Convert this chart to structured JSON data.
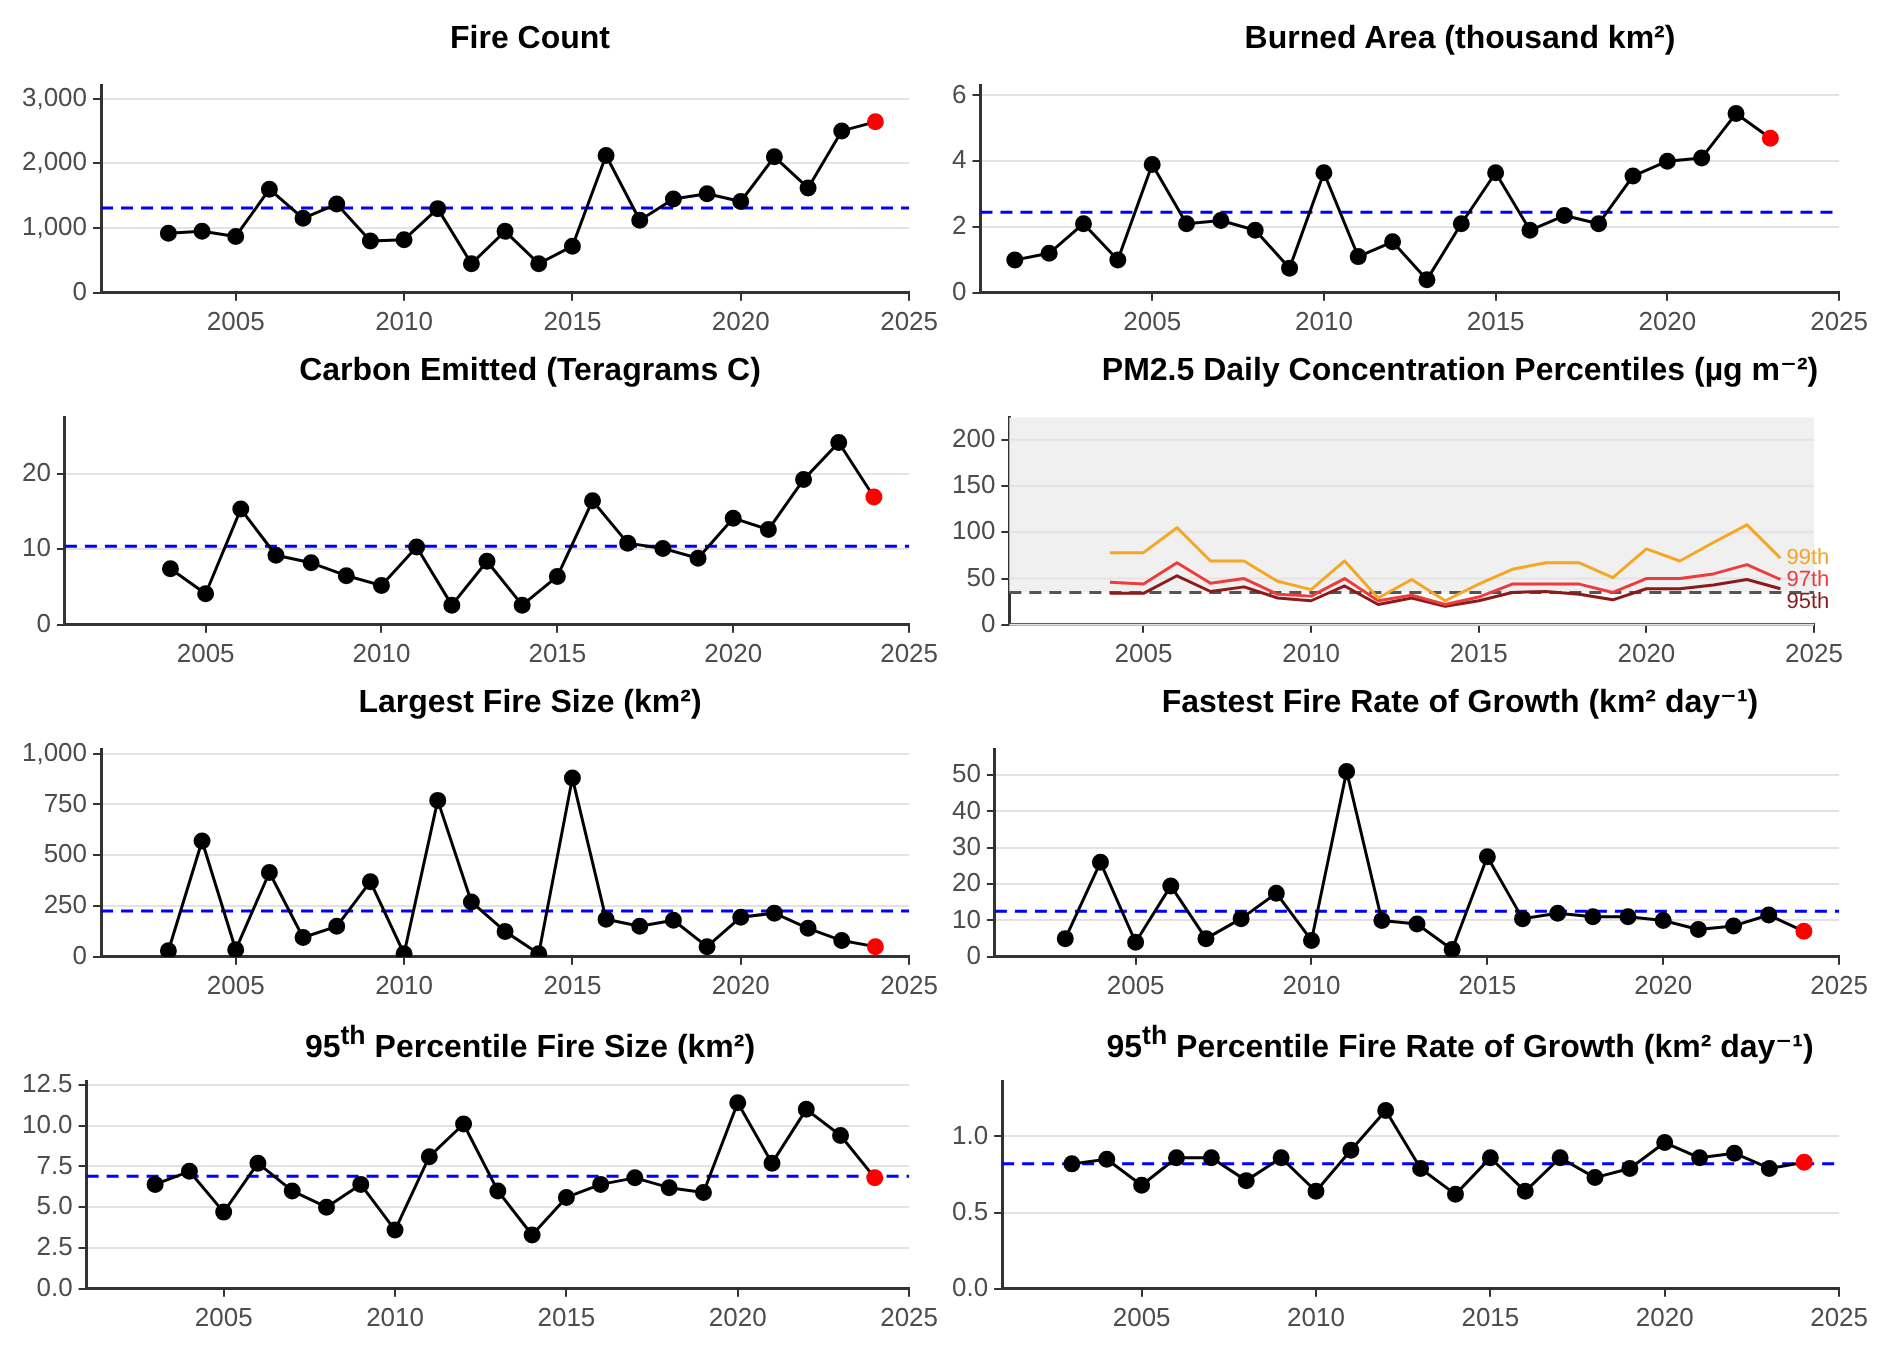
{
  "chart_data": [
    {
      "type": "line",
      "title": "Fire Count",
      "x": [
        2003,
        2004,
        2005,
        2006,
        2007,
        2008,
        2009,
        2010,
        2011,
        2012,
        2013,
        2014,
        2015,
        2016,
        2017,
        2018,
        2019,
        2020,
        2021,
        2022,
        2023,
        2024
      ],
      "xlim": [
        2001,
        2025
      ],
      "xticks": [
        2005,
        2010,
        2015,
        2020,
        2025
      ],
      "ylim": [
        0,
        3200
      ],
      "yticks": [
        0,
        {
          "value": 1000,
          "label": "1,000"
        },
        {
          "value": 2000,
          "label": "2,000"
        },
        {
          "value": 3000,
          "label": "3,000"
        }
      ],
      "grid": "y",
      "marker": "circle",
      "series": [
        {
          "color": "#000000",
          "colors": [
            "#000000",
            "#000000",
            "#000000",
            "#000000",
            "#000000",
            "#000000",
            "#000000",
            "#000000",
            "#000000",
            "#000000",
            "#000000",
            "#000000",
            "#000000",
            "#000000",
            "#000000",
            "#000000",
            "#000000",
            "#000000",
            "#000000",
            "#000000",
            "#000000",
            "#ff0000"
          ],
          "values": [
            920,
            950,
            870,
            1600,
            1150,
            1370,
            800,
            820,
            1300,
            450,
            950,
            450,
            720,
            2120,
            1120,
            1450,
            1530,
            1410,
            2100,
            1620,
            2500,
            2640
          ]
        }
      ],
      "ref_lines": [
        {
          "axis": "y",
          "value": 1310,
          "color": "#0000ff",
          "line_style": "dashed"
        }
      ]
    },
    {
      "type": "line",
      "title": "Burned Area (thousand km²)",
      "x": [
        2001,
        2002,
        2003,
        2004,
        2005,
        2006,
        2007,
        2008,
        2009,
        2010,
        2011,
        2012,
        2013,
        2014,
        2015,
        2016,
        2017,
        2018,
        2019,
        2020,
        2021,
        2022,
        2023
      ],
      "xlim": [
        2000,
        2025
      ],
      "xticks": [
        2005,
        2010,
        2015,
        2020,
        2025
      ],
      "ylim": [
        0,
        6.3
      ],
      "yticks": [
        0,
        2,
        4,
        6
      ],
      "grid": "y",
      "marker": "circle",
      "series": [
        {
          "color": "#000000",
          "colors": [
            "#000000",
            "#000000",
            "#000000",
            "#000000",
            "#000000",
            "#000000",
            "#000000",
            "#000000",
            "#000000",
            "#000000",
            "#000000",
            "#000000",
            "#000000",
            "#000000",
            "#000000",
            "#000000",
            "#000000",
            "#000000",
            "#000000",
            "#000000",
            "#000000",
            "#000000",
            "#ff0000"
          ],
          "values": [
            1.0,
            1.2,
            2.1,
            1.0,
            3.9,
            2.1,
            2.2,
            1.9,
            0.75,
            3.65,
            1.1,
            1.55,
            0.4,
            2.1,
            3.65,
            1.9,
            2.35,
            2.1,
            3.55,
            4.0,
            4.1,
            5.45,
            4.7
          ]
        }
      ],
      "ref_lines": [
        {
          "axis": "y",
          "value": 2.45,
          "color": "#0000ff",
          "line_style": "dashed"
        }
      ]
    },
    {
      "type": "line",
      "title": "Carbon Emitted (Teragrams C)",
      "x": [
        2004,
        2005,
        2006,
        2007,
        2008,
        2009,
        2010,
        2011,
        2012,
        2013,
        2014,
        2015,
        2016,
        2017,
        2018,
        2019,
        2020,
        2021,
        2022,
        2023,
        2024
      ],
      "xlim": [
        2001,
        2025
      ],
      "xticks": [
        2005,
        2010,
        2015,
        2020,
        2025
      ],
      "ylim": [
        0,
        27.4
      ],
      "yticks": [
        0,
        10,
        20
      ],
      "grid": "y",
      "marker": "circle",
      "series": [
        {
          "color": "#000000",
          "colors": [
            "#000000",
            "#000000",
            "#000000",
            "#000000",
            "#000000",
            "#000000",
            "#000000",
            "#000000",
            "#000000",
            "#000000",
            "#000000",
            "#000000",
            "#000000",
            "#000000",
            "#000000",
            "#000000",
            "#000000",
            "#000000",
            "#000000",
            "#000000",
            "#ff0000"
          ],
          "values": [
            7.4,
            4.1,
            15.3,
            9.2,
            8.2,
            6.5,
            5.2,
            10.3,
            2.6,
            8.4,
            2.6,
            6.4,
            16.4,
            10.8,
            10.1,
            8.8,
            14.1,
            12.6,
            19.2,
            24.1,
            16.9
          ]
        }
      ],
      "ref_lines": [
        {
          "axis": "y",
          "value": 10.4,
          "color": "#0000ff",
          "line_style": "dashed"
        }
      ]
    },
    {
      "type": "line",
      "title": "PM2.5 Daily Concentration Percentiles (µg m⁻²)",
      "x": [
        2004,
        2005,
        2006,
        2007,
        2008,
        2009,
        2010,
        2011,
        2012,
        2013,
        2014,
        2015,
        2016,
        2017,
        2018,
        2019,
        2020,
        2021,
        2022,
        2023,
        2024
      ],
      "xlim": [
        2001,
        2025
      ],
      "xticks": [
        2005,
        2010,
        2015,
        2020,
        2025
      ],
      "ylim": [
        0,
        224
      ],
      "yticks": [
        0,
        50,
        100,
        150,
        200
      ],
      "grid": "y",
      "marker": "none",
      "series": [
        {
          "name": "99th",
          "color": "#f5a623",
          "values": [
            78,
            78,
            105,
            69,
            69,
            47,
            38,
            69,
            29,
            49,
            26,
            44,
            60,
            67,
            67,
            51,
            82,
            69,
            89,
            108,
            72
          ]
        },
        {
          "name": "97th",
          "color": "#ee3b3b",
          "values": [
            46,
            44,
            67,
            45,
            50,
            33,
            31,
            50,
            26,
            32,
            22,
            30,
            44,
            44,
            44,
            35,
            50,
            50,
            55,
            65,
            49
          ]
        },
        {
          "name": "95th",
          "color": "#8b1a1a",
          "values": [
            34,
            34,
            53,
            36,
            41,
            29,
            26,
            42,
            22,
            29,
            20,
            26,
            35,
            36,
            33,
            27,
            39,
            39,
            43,
            49,
            39
          ]
        }
      ],
      "bands": [
        {
          "axis": "y",
          "from": 35,
          "to": 224,
          "color": "#f0f0f0"
        }
      ],
      "ref_lines": [
        {
          "axis": "y",
          "value": 35,
          "color": "#555555",
          "line_style": "dashed"
        }
      ]
    },
    {
      "type": "line",
      "title": "Largest Fire Size (km²)",
      "x": [
        2003,
        2004,
        2005,
        2006,
        2007,
        2008,
        2009,
        2010,
        2011,
        2012,
        2013,
        2014,
        2015,
        2016,
        2017,
        2018,
        2019,
        2020,
        2021,
        2022,
        2023,
        2024
      ],
      "xlim": [
        2001,
        2025
      ],
      "xticks": [
        2005,
        2010,
        2015,
        2020,
        2025
      ],
      "ylim": [
        0,
        1020
      ],
      "yticks": [
        0,
        250,
        500,
        750,
        {
          "value": 1000,
          "label": "1,000"
        }
      ],
      "grid": "y",
      "marker": "circle",
      "series": [
        {
          "color": "#000000",
          "colors": [
            "#000000",
            "#000000",
            "#000000",
            "#000000",
            "#000000",
            "#000000",
            "#000000",
            "#000000",
            "#000000",
            "#000000",
            "#000000",
            "#000000",
            "#000000",
            "#000000",
            "#000000",
            "#000000",
            "#000000",
            "#000000",
            "#000000",
            "#000000",
            "#000000",
            "#ff0000"
          ],
          "values": [
            30,
            570,
            35,
            415,
            95,
            150,
            370,
            15,
            770,
            270,
            125,
            15,
            880,
            185,
            150,
            180,
            50,
            195,
            215,
            140,
            80,
            50
          ]
        }
      ],
      "ref_lines": [
        {
          "axis": "y",
          "value": 225,
          "color": "#0000ff",
          "line_style": "dashed"
        }
      ]
    },
    {
      "type": "line",
      "title": "Fastest Fire Rate of Growth (km² day⁻¹)",
      "x": [
        2003,
        2004,
        2005,
        2006,
        2007,
        2008,
        2009,
        2010,
        2011,
        2012,
        2013,
        2014,
        2015,
        2016,
        2017,
        2018,
        2019,
        2020,
        2021,
        2022,
        2023,
        2024
      ],
      "xlim": [
        2001,
        2025
      ],
      "xticks": [
        2005,
        2010,
        2015,
        2020,
        2025
      ],
      "ylim": [
        0,
        57
      ],
      "yticks": [
        0,
        10,
        20,
        30,
        40,
        50
      ],
      "grid": "y",
      "marker": "circle",
      "series": [
        {
          "color": "#000000",
          "colors": [
            "#000000",
            "#000000",
            "#000000",
            "#000000",
            "#000000",
            "#000000",
            "#000000",
            "#000000",
            "#000000",
            "#000000",
            "#000000",
            "#000000",
            "#000000",
            "#000000",
            "#000000",
            "#000000",
            "#000000",
            "#000000",
            "#000000",
            "#000000",
            "#000000",
            "#ff0000"
          ],
          "values": [
            5,
            26,
            4,
            19.5,
            5,
            10.5,
            17.5,
            4.5,
            51,
            10,
            9,
            2,
            27.5,
            10.5,
            12,
            11,
            11,
            10,
            7.5,
            8.5,
            11.5,
            7
          ]
        }
      ],
      "ref_lines": [
        {
          "axis": "y",
          "value": 12.5,
          "color": "#0000ff",
          "line_style": "dashed"
        }
      ]
    },
    {
      "type": "line",
      "title": "95$^{th}$ Percentile Fire Size (km²)",
      "x": [
        2003,
        2004,
        2005,
        2006,
        2007,
        2008,
        2009,
        2010,
        2011,
        2012,
        2013,
        2014,
        2015,
        2016,
        2017,
        2018,
        2019,
        2020,
        2021,
        2022,
        2023,
        2024
      ],
      "xlim": [
        2001,
        2025
      ],
      "xticks": [
        2005,
        2010,
        2015,
        2020,
        2025
      ],
      "ylim": [
        0,
        12.7
      ],
      "yticks": [
        {
          "value": 0,
          "label": "0.0"
        },
        2.5,
        {
          "value": 5,
          "label": "5.0"
        },
        7.5,
        {
          "value": 10,
          "label": "10.0"
        },
        12.5
      ],
      "grid": "y",
      "marker": "circle",
      "series": [
        {
          "color": "#000000",
          "colors": [
            "#000000",
            "#000000",
            "#000000",
            "#000000",
            "#000000",
            "#000000",
            "#000000",
            "#000000",
            "#000000",
            "#000000",
            "#000000",
            "#000000",
            "#000000",
            "#000000",
            "#000000",
            "#000000",
            "#000000",
            "#000000",
            "#000000",
            "#000000",
            "#000000",
            "#ff0000"
          ],
          "values": [
            6.4,
            7.2,
            4.7,
            7.7,
            6.0,
            5.0,
            6.4,
            3.6,
            8.1,
            10.1,
            6.0,
            3.3,
            5.6,
            6.4,
            6.8,
            6.2,
            5.9,
            11.4,
            7.7,
            11.0,
            9.4,
            6.8
          ]
        }
      ],
      "ref_lines": [
        {
          "axis": "y",
          "value": 6.9,
          "color": "#0000ff",
          "line_style": "dashed"
        }
      ]
    },
    {
      "type": "line",
      "title": "95$^{th}$ Percentile Fire Rate of Growth (km² day⁻¹)",
      "x": [
        2003,
        2004,
        2005,
        2006,
        2007,
        2008,
        2009,
        2010,
        2011,
        2012,
        2013,
        2014,
        2015,
        2016,
        2017,
        2018,
        2019,
        2020,
        2021,
        2022,
        2023,
        2024
      ],
      "xlim": [
        2001,
        2025
      ],
      "xticks": [
        2005,
        2010,
        2015,
        2020,
        2025
      ],
      "ylim": [
        0,
        1.36
      ],
      "yticks": [
        {
          "value": 0,
          "label": "0.0"
        },
        0.5,
        {
          "value": 1,
          "label": "1.0"
        }
      ],
      "grid": "y",
      "marker": "circle",
      "series": [
        {
          "color": "#000000",
          "colors": [
            "#000000",
            "#000000",
            "#000000",
            "#000000",
            "#000000",
            "#000000",
            "#000000",
            "#000000",
            "#000000",
            "#000000",
            "#000000",
            "#000000",
            "#000000",
            "#000000",
            "#000000",
            "#000000",
            "#000000",
            "#000000",
            "#000000",
            "#000000",
            "#000000",
            "#ff0000"
          ],
          "values": [
            0.82,
            0.85,
            0.68,
            0.86,
            0.86,
            0.71,
            0.86,
            0.64,
            0.91,
            1.17,
            0.79,
            0.62,
            0.86,
            0.64,
            0.86,
            0.73,
            0.79,
            0.96,
            0.86,
            0.89,
            0.79,
            0.83
          ]
        }
      ],
      "ref_lines": [
        {
          "axis": "y",
          "value": 0.82,
          "color": "#0000ff",
          "line_style": "dashed"
        }
      ]
    }
  ]
}
